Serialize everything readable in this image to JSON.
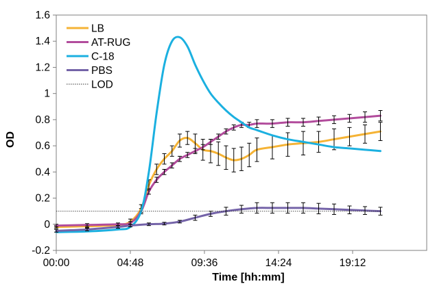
{
  "chart_data": {
    "type": "line",
    "title": "",
    "xlabel": "Time [hh:mm]",
    "ylabel": "OD",
    "xlim_minutes": [
      0,
      1440
    ],
    "ylim": [
      -0.2,
      1.6
    ],
    "x_ticks": [
      {
        "minutes": 0,
        "label": "00:00"
      },
      {
        "minutes": 288,
        "label": "04:48"
      },
      {
        "minutes": 576,
        "label": "09:36"
      },
      {
        "minutes": 864,
        "label": "14:24"
      },
      {
        "minutes": 1152,
        "label": "19:12"
      }
    ],
    "y_ticks": [
      {
        "value": -0.2,
        "label": "-0.2"
      },
      {
        "value": 0,
        "label": "0"
      },
      {
        "value": 0.2,
        "label": "0.2"
      },
      {
        "value": 0.4,
        "label": "0.4"
      },
      {
        "value": 0.6,
        "label": "0.6"
      },
      {
        "value": 0.8,
        "label": "0.8"
      },
      {
        "value": 1,
        "label": "1"
      },
      {
        "value": 1.2,
        "label": "1.2"
      },
      {
        "value": 1.4,
        "label": "1.4"
      },
      {
        "value": 1.6,
        "label": "1.6"
      }
    ],
    "grid": false,
    "legend_position": "top-left",
    "series": [
      {
        "name": "LB",
        "color": "#f5b335",
        "x_minutes": [
          0,
          120,
          240,
          288,
          330,
          360,
          390,
          420,
          450,
          480,
          510,
          540,
          570,
          600,
          630,
          660,
          690,
          720,
          750,
          780,
          840,
          900,
          960,
          1020,
          1080,
          1140,
          1200,
          1260
        ],
        "y": [
          -0.02,
          -0.015,
          -0.005,
          0.02,
          0.12,
          0.3,
          0.42,
          0.5,
          0.56,
          0.64,
          0.66,
          0.62,
          0.57,
          0.56,
          0.54,
          0.51,
          0.49,
          0.5,
          0.53,
          0.57,
          0.59,
          0.61,
          0.62,
          0.63,
          0.65,
          0.67,
          0.69,
          0.71
        ],
        "error": [
          0.01,
          0.01,
          0.01,
          0.02,
          0.03,
          0.04,
          0.04,
          0.04,
          0.04,
          0.05,
          0.05,
          0.07,
          0.08,
          0.09,
          0.09,
          0.09,
          0.09,
          0.09,
          0.09,
          0.09,
          0.09,
          0.09,
          0.09,
          0.08,
          0.08,
          0.07,
          0.07,
          0.07
        ]
      },
      {
        "name": "AT-RUG",
        "color": "#b24c9c",
        "x_minutes": [
          0,
          120,
          240,
          288,
          330,
          360,
          390,
          420,
          450,
          480,
          510,
          540,
          570,
          600,
          630,
          660,
          690,
          720,
          750,
          780,
          840,
          900,
          960,
          1020,
          1080,
          1140,
          1200,
          1260
        ],
        "y": [
          -0.01,
          -0.005,
          0.0,
          0.01,
          0.1,
          0.25,
          0.34,
          0.4,
          0.45,
          0.5,
          0.53,
          0.56,
          0.59,
          0.63,
          0.67,
          0.71,
          0.74,
          0.76,
          0.76,
          0.77,
          0.77,
          0.78,
          0.78,
          0.79,
          0.8,
          0.81,
          0.82,
          0.83
        ],
        "error": [
          0.01,
          0.01,
          0.01,
          0.01,
          0.02,
          0.02,
          0.02,
          0.02,
          0.02,
          0.02,
          0.02,
          0.02,
          0.02,
          0.02,
          0.02,
          0.02,
          0.02,
          0.02,
          0.02,
          0.03,
          0.03,
          0.03,
          0.03,
          0.03,
          0.03,
          0.03,
          0.04,
          0.04
        ]
      },
      {
        "name": "C-18",
        "color": "#1bb0e0",
        "x_minutes": [
          0,
          120,
          240,
          288,
          330,
          360,
          390,
          420,
          450,
          480,
          510,
          540,
          570,
          600,
          630,
          660,
          690,
          720,
          750,
          780,
          840,
          900,
          960,
          1020,
          1080,
          1140,
          1200,
          1260
        ],
        "y": [
          -0.06,
          -0.055,
          -0.04,
          -0.02,
          0.1,
          0.4,
          0.85,
          1.22,
          1.4,
          1.43,
          1.36,
          1.22,
          1.1,
          1.0,
          0.93,
          0.87,
          0.82,
          0.78,
          0.74,
          0.72,
          0.68,
          0.65,
          0.63,
          0.61,
          0.59,
          0.58,
          0.57,
          0.56
        ]
      },
      {
        "name": "PBS",
        "color": "#7463a8",
        "x_minutes": [
          0,
          120,
          240,
          288,
          360,
          420,
          480,
          540,
          600,
          660,
          720,
          780,
          840,
          900,
          960,
          1020,
          1080,
          1140,
          1200,
          1260
        ],
        "y": [
          -0.05,
          -0.04,
          -0.02,
          -0.01,
          0.0,
          0.005,
          0.02,
          0.05,
          0.08,
          0.1,
          0.115,
          0.125,
          0.125,
          0.125,
          0.125,
          0.12,
          0.115,
          0.11,
          0.105,
          0.1
        ],
        "error": [
          0.01,
          0.01,
          0.01,
          0.01,
          0.01,
          0.01,
          0.01,
          0.02,
          0.02,
          0.03,
          0.03,
          0.04,
          0.04,
          0.04,
          0.04,
          0.04,
          0.04,
          0.03,
          0.03,
          0.03
        ]
      },
      {
        "name": "LOD",
        "color": "#333333",
        "dashed": true,
        "x_minutes": [
          0,
          1260
        ],
        "y": [
          0.1,
          0.1
        ]
      }
    ]
  }
}
